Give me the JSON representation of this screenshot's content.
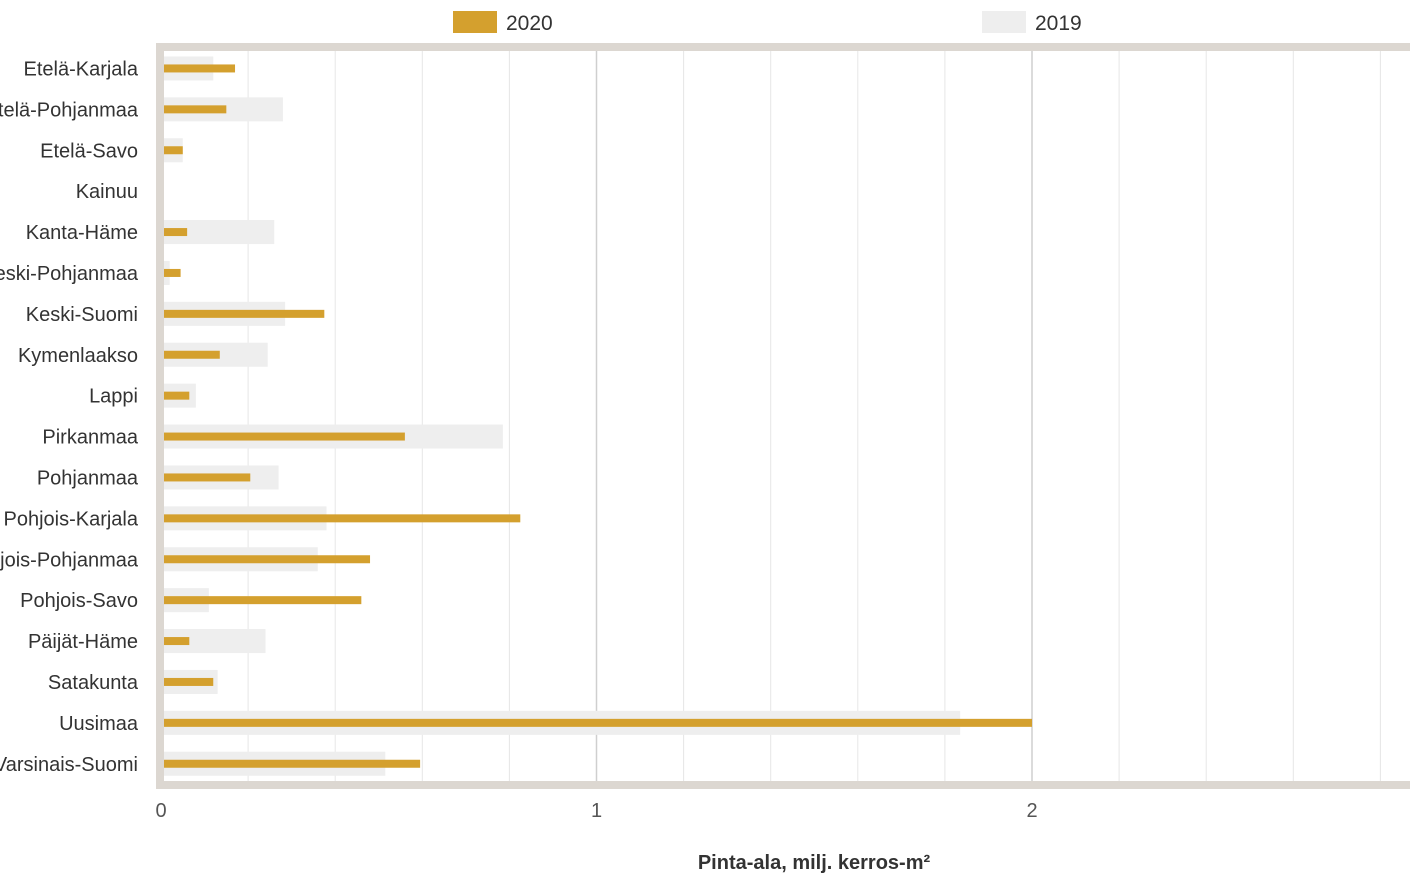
{
  "chart_data": {
    "type": "bar",
    "orientation": "horizontal",
    "categories": [
      "Etelä-Karjala",
      "Etelä-Pohjanmaa",
      "Etelä-Savo",
      "Kainuu",
      "Kanta-Häme",
      "Keski-Pohjanmaa",
      "Keski-Suomi",
      "Kymenlaakso",
      "Lappi",
      "Pirkanmaa",
      "Pohjanmaa",
      "Pohjois-Karjala",
      "Pohjois-Pohjanmaa",
      "Pohjois-Savo",
      "Päijät-Häme",
      "Satakunta",
      "Uusimaa",
      "Varsinais-Suomi"
    ],
    "series": [
      {
        "name": "2020",
        "color": "#D4A02E",
        "values": [
          0.17,
          0.15,
          0.05,
          0.005,
          0.06,
          0.045,
          0.375,
          0.135,
          0.065,
          0.56,
          0.205,
          0.825,
          0.48,
          0.46,
          0.065,
          0.12,
          2.0,
          0.595
        ]
      },
      {
        "name": "2019",
        "color": "#EEEEEE",
        "values": [
          0.12,
          0.28,
          0.05,
          0.0,
          0.26,
          0.02,
          0.285,
          0.245,
          0.08,
          0.785,
          0.27,
          0.38,
          0.36,
          0.11,
          0.24,
          0.13,
          1.835,
          0.515
        ]
      }
    ],
    "xlabel": "Pinta-ala, milj. kerros-m²",
    "ylabel": "",
    "xlim": [
      0,
      2.85
    ],
    "xticks": [
      0,
      1,
      2
    ],
    "grid": true,
    "legend_position": "top"
  }
}
